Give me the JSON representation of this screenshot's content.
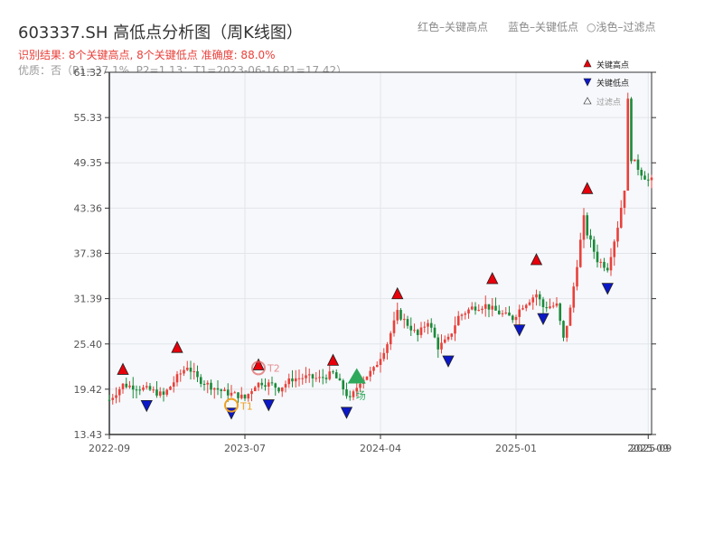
{
  "header": {
    "title": "603337.SH 高低点分析图（周K线图）",
    "result": "识别结果: 8个关键高点, 8个关键低点  准确度: 88.0%",
    "quality": "优质：否（P1=37.1%, P2=1.13；T1=2023-06-16 P1=17.42）",
    "legend_red": "红色–关键高点",
    "legend_blue": "蓝色–关键低点",
    "legend_light": "○浅色–过滤点"
  },
  "colors": {
    "up": "#e8413b",
    "down": "#1a8a3a",
    "high_marker": "#e8000b",
    "low_marker": "#0b18c8",
    "filtered": "#999999",
    "grid": "#e2e5ea",
    "plot_bg": "#f6f8fb",
    "t_marker": "#f0a020",
    "t_label": "#e06060",
    "big_green": "#2ea85a"
  },
  "chart_data": {
    "type": "candlestick",
    "yticks": [
      "13.43",
      "19.42",
      "25.40",
      "31.39",
      "37.38",
      "43.36",
      "49.35",
      "55.33",
      "61.32"
    ],
    "ylim": [
      13.43,
      61.32
    ],
    "xticks": [
      "2022-09",
      "2023-07",
      "2024-04",
      "2025-01",
      "2025-09"
    ],
    "xlim": [
      0,
      160
    ],
    "xtick_positions": [
      0,
      40,
      80,
      120,
      159
    ],
    "legend": [
      "关键高点",
      "关键低点",
      "过滤点"
    ],
    "anchors": [
      [
        0,
        18.0
      ],
      [
        4,
        20.0
      ],
      [
        8,
        19.7
      ],
      [
        12,
        19.3
      ],
      [
        16,
        18.6
      ],
      [
        20,
        21.0
      ],
      [
        23,
        22.5
      ],
      [
        26,
        20.8
      ],
      [
        30,
        19.8
      ],
      [
        34,
        19.0
      ],
      [
        38,
        18.6
      ],
      [
        40,
        18.2
      ],
      [
        43,
        20.0
      ],
      [
        45,
        20.3
      ],
      [
        48,
        20.0
      ],
      [
        50,
        19.5
      ],
      [
        54,
        20.8
      ],
      [
        58,
        21.0
      ],
      [
        62,
        20.8
      ],
      [
        66,
        21.5
      ],
      [
        69,
        19.5
      ],
      [
        71,
        18.0
      ],
      [
        74,
        20.5
      ],
      [
        78,
        22.0
      ],
      [
        82,
        25.5
      ],
      [
        85,
        29.5
      ],
      [
        88,
        28.0
      ],
      [
        91,
        26.5
      ],
      [
        94,
        28.5
      ],
      [
        97,
        25.0
      ],
      [
        100,
        26.0
      ],
      [
        103,
        29.0
      ],
      [
        107,
        30.2
      ],
      [
        111,
        30.5
      ],
      [
        115,
        29.5
      ],
      [
        119,
        28.8
      ],
      [
        122,
        30.5
      ],
      [
        126,
        32.0
      ],
      [
        128,
        30.3
      ],
      [
        132,
        30.5
      ],
      [
        134,
        26.0
      ],
      [
        136,
        30.0
      ],
      [
        140,
        42.0
      ],
      [
        141,
        40.0
      ],
      [
        144,
        36.5
      ],
      [
        147,
        35.5
      ],
      [
        150,
        41.0
      ],
      [
        152,
        46.0
      ],
      [
        153,
        57.5
      ],
      [
        154,
        50.0
      ],
      [
        157,
        48.0
      ],
      [
        159,
        47.0
      ]
    ],
    "key_highs": [
      {
        "x": 4,
        "y": 20.9
      },
      {
        "x": 20,
        "y": 23.8
      },
      {
        "x": 44,
        "y": 21.5
      },
      {
        "x": 66,
        "y": 22.1
      },
      {
        "x": 85,
        "y": 30.9
      },
      {
        "x": 113,
        "y": 32.9
      },
      {
        "x": 126,
        "y": 35.4
      },
      {
        "x": 141,
        "y": 44.8
      }
    ],
    "key_lows": [
      {
        "x": 11,
        "y": 18.4
      },
      {
        "x": 36,
        "y": 17.4
      },
      {
        "x": 47,
        "y": 18.5
      },
      {
        "x": 70,
        "y": 17.5
      },
      {
        "x": 100,
        "y": 24.3
      },
      {
        "x": 121,
        "y": 28.4
      },
      {
        "x": 128,
        "y": 29.9
      },
      {
        "x": 147,
        "y": 33.9
      }
    ],
    "circled": [
      {
        "x": 36,
        "y": 17.3,
        "label": "T1"
      },
      {
        "x": 44,
        "y": 21.5,
        "label": "T2"
      }
    ],
    "big_marker": {
      "x": 73,
      "y": 20.9,
      "label": "场"
    }
  }
}
